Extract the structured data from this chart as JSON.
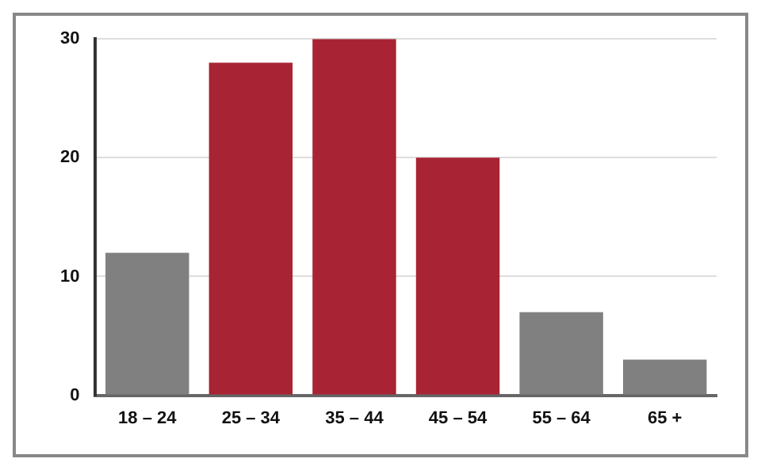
{
  "chart_data": {
    "type": "bar",
    "categories": [
      "18 – 24",
      "25 – 34",
      "35 – 44",
      "45 – 54",
      "55 – 64",
      "65 +"
    ],
    "values": [
      12,
      28,
      30,
      20,
      7,
      3
    ],
    "colors": [
      "#808080",
      "#a82434",
      "#a82434",
      "#a82434",
      "#808080",
      "#808080"
    ],
    "ylim": [
      0,
      30
    ],
    "yticks": [
      0,
      10,
      20,
      30
    ],
    "grid": "y",
    "legend": false
  }
}
